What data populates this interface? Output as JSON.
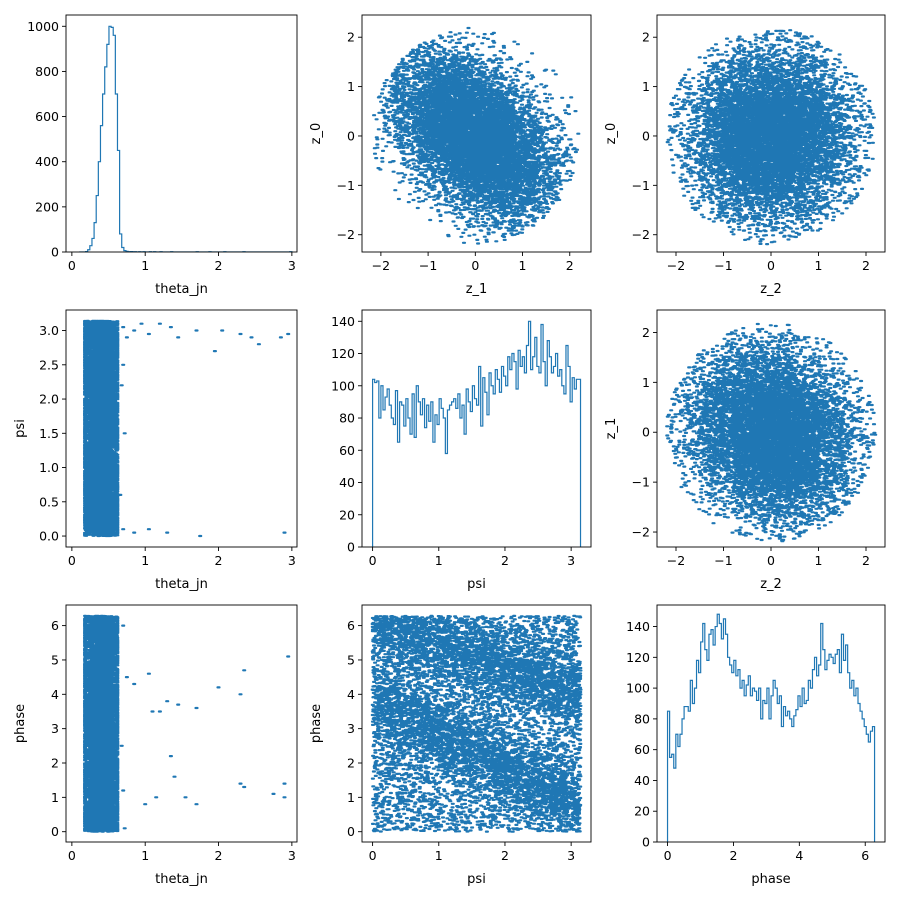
{
  "chart_data": [
    {
      "type": "histogram",
      "panel": "row1-col1",
      "xlabel": "theta_jn",
      "ylabel": "",
      "xlim": [
        -0.08,
        3.07
      ],
      "ylim": [
        0,
        1050
      ],
      "xticks": [
        0,
        1,
        2,
        3
      ],
      "yticks": [
        0,
        200,
        400,
        600,
        800,
        1000
      ],
      "bins": {
        "start": 0.1,
        "end": 3.0,
        "n": 100
      },
      "counts": [
        0,
        0,
        0,
        2,
        10,
        28,
        60,
        130,
        250,
        400,
        560,
        700,
        820,
        920,
        1000,
        995,
        960,
        700,
        450,
        80,
        20,
        6,
        3,
        1,
        2,
        1,
        1,
        0,
        1,
        0,
        1,
        0,
        0,
        1,
        0,
        1,
        0,
        0,
        1,
        0,
        0,
        0,
        0,
        1,
        0,
        0,
        0,
        0,
        0,
        0,
        0,
        0,
        0,
        0,
        0,
        1,
        0,
        0,
        0,
        0,
        0,
        1,
        0,
        0,
        0,
        0,
        0,
        0,
        1,
        0,
        0,
        0,
        0,
        0,
        0,
        0,
        0,
        1,
        0,
        0,
        0,
        0,
        0,
        0,
        0,
        0,
        0,
        0,
        0,
        0,
        0,
        0,
        0,
        0,
        0,
        0,
        0,
        0,
        0,
        1
      ],
      "color": "#1f77b4"
    },
    {
      "type": "scatter",
      "panel": "row1-col2",
      "xlabel": "z_1",
      "ylabel": "z_0",
      "xlim": [
        -2.4,
        2.45
      ],
      "ylim": [
        -2.35,
        2.45
      ],
      "xticks": [
        -2,
        -1,
        0,
        1,
        2
      ],
      "yticks": [
        -2,
        -1,
        0,
        1,
        2
      ],
      "distribution": {
        "kind": "disk",
        "radius": 2.2,
        "n_points": 9000,
        "correlation": -0.45,
        "seed": 11
      },
      "color": "#1f77b4"
    },
    {
      "type": "scatter",
      "panel": "row1-col3",
      "xlabel": "z_2",
      "ylabel": "z_0",
      "xlim": [
        -2.4,
        2.4
      ],
      "ylim": [
        -2.35,
        2.45
      ],
      "xticks": [
        -2,
        -1,
        0,
        1,
        2
      ],
      "yticks": [
        -2,
        -1,
        0,
        1,
        2
      ],
      "distribution": {
        "kind": "disk",
        "radius": 2.2,
        "n_points": 9000,
        "correlation": 0.0,
        "seed": 23
      },
      "color": "#1f77b4"
    },
    {
      "type": "scatter",
      "panel": "row2-col1",
      "xlabel": "theta_jn",
      "ylabel": "psi",
      "xlim": [
        -0.08,
        3.07
      ],
      "ylim": [
        -0.16,
        3.3
      ],
      "xticks": [
        0,
        1,
        2,
        3
      ],
      "yticks": [
        0.0,
        0.5,
        1.0,
        1.5,
        2.0,
        2.5,
        3.0
      ],
      "tick_decimals_y": 1,
      "distribution": {
        "kind": "band",
        "x_range": [
          0.18,
          0.62
        ],
        "y_range": [
          0,
          3.14159
        ],
        "n_points": 9000,
        "seed": 5
      },
      "outliers": [
        [
          0.7,
          3.05
        ],
        [
          0.75,
          2.9
        ],
        [
          0.85,
          3.0
        ],
        [
          0.95,
          3.1
        ],
        [
          1.05,
          2.95
        ],
        [
          1.2,
          3.1
        ],
        [
          1.35,
          3.05
        ],
        [
          1.45,
          2.9
        ],
        [
          1.7,
          3.0
        ],
        [
          1.95,
          2.7
        ],
        [
          2.05,
          3.0
        ],
        [
          2.3,
          2.95
        ],
        [
          2.45,
          2.9
        ],
        [
          2.55,
          2.8
        ],
        [
          2.85,
          2.9
        ],
        [
          2.95,
          2.95
        ],
        [
          0.7,
          2.5
        ],
        [
          0.72,
          1.5
        ],
        [
          0.7,
          0.1
        ],
        [
          0.85,
          0.05
        ],
        [
          1.05,
          0.1
        ],
        [
          1.3,
          0.05
        ],
        [
          1.75,
          0.0
        ],
        [
          2.9,
          0.05
        ],
        [
          0.68,
          2.2
        ],
        [
          0.66,
          0.6
        ]
      ],
      "color": "#1f77b4"
    },
    {
      "type": "histogram",
      "panel": "row2-col2",
      "xlabel": "psi",
      "ylabel": "",
      "xlim": [
        -0.16,
        3.3
      ],
      "ylim": [
        0,
        147
      ],
      "xticks": [
        0,
        1,
        2,
        3
      ],
      "yticks": [
        0,
        20,
        40,
        60,
        80,
        100,
        120,
        140
      ],
      "bins": {
        "start": 0,
        "end": 3.14159,
        "n": 100
      },
      "counts": [
        104,
        102,
        103,
        80,
        100,
        85,
        93,
        98,
        88,
        80,
        76,
        97,
        65,
        90,
        88,
        75,
        92,
        80,
        70,
        95,
        68,
        100,
        90,
        82,
        92,
        74,
        88,
        78,
        90,
        65,
        82,
        76,
        92,
        86,
        80,
        58,
        85,
        88,
        90,
        92,
        86,
        95,
        80,
        88,
        70,
        98,
        90,
        84,
        100,
        92,
        88,
        112,
        75,
        105,
        96,
        82,
        108,
        100,
        95,
        110,
        104,
        96,
        112,
        106,
        100,
        118,
        110,
        120,
        115,
        98,
        122,
        112,
        118,
        108,
        125,
        140,
        110,
        118,
        130,
        112,
        108,
        138,
        115,
        100,
        128,
        118,
        108,
        112,
        120,
        106,
        110,
        100,
        95,
        125,
        112,
        90,
        105,
        98,
        104,
        104
      ],
      "color": "#1f77b4"
    },
    {
      "type": "scatter",
      "panel": "row2-col3",
      "xlabel": "z_2",
      "ylabel": "z_1",
      "xlim": [
        -2.4,
        2.4
      ],
      "ylim": [
        -2.3,
        2.45
      ],
      "xticks": [
        -2,
        -1,
        0,
        1,
        2
      ],
      "yticks": [
        -2,
        -1,
        0,
        1,
        2
      ],
      "distribution": {
        "kind": "disk",
        "radius": 2.2,
        "n_points": 9000,
        "correlation": -0.15,
        "seed": 37
      },
      "color": "#1f77b4"
    },
    {
      "type": "scatter",
      "panel": "row3-col1",
      "xlabel": "theta_jn",
      "ylabel": "phase",
      "xlim": [
        -0.08,
        3.07
      ],
      "ylim": [
        -0.3,
        6.6
      ],
      "xticks": [
        0,
        1,
        2,
        3
      ],
      "yticks": [
        0,
        1,
        2,
        3,
        4,
        5,
        6
      ],
      "distribution": {
        "kind": "band",
        "x_range": [
          0.18,
          0.62
        ],
        "y_range": [
          0,
          6.2832
        ],
        "n_points": 9000,
        "seed": 9
      },
      "outliers": [
        [
          0.7,
          6.0
        ],
        [
          0.75,
          4.5
        ],
        [
          0.85,
          4.3
        ],
        [
          1.05,
          4.6
        ],
        [
          1.1,
          3.5
        ],
        [
          1.2,
          3.5
        ],
        [
          1.3,
          3.8
        ],
        [
          1.45,
          3.7
        ],
        [
          1.7,
          3.6
        ],
        [
          2.0,
          4.2
        ],
        [
          2.3,
          4.0
        ],
        [
          2.35,
          4.7
        ],
        [
          2.95,
          5.1
        ],
        [
          1.0,
          0.8
        ],
        [
          1.15,
          1.0
        ],
        [
          1.35,
          2.2
        ],
        [
          1.4,
          1.6
        ],
        [
          1.55,
          1.0
        ],
        [
          1.7,
          0.8
        ],
        [
          2.3,
          1.4
        ],
        [
          2.35,
          1.3
        ],
        [
          2.75,
          1.1
        ],
        [
          2.9,
          1.0
        ],
        [
          2.9,
          1.4
        ],
        [
          0.7,
          1.2
        ],
        [
          0.68,
          2.5
        ],
        [
          0.72,
          0.1
        ]
      ],
      "color": "#1f77b4"
    },
    {
      "type": "scatter",
      "panel": "row3-col2",
      "xlabel": "psi",
      "ylabel": "phase",
      "xlim": [
        -0.16,
        3.3
      ],
      "ylim": [
        -0.3,
        6.6
      ],
      "xticks": [
        0,
        1,
        2,
        3
      ],
      "yticks": [
        0,
        1,
        2,
        3,
        4,
        5,
        6
      ],
      "distribution": {
        "kind": "diagonal-bands",
        "x_range": [
          0,
          3.14159
        ],
        "y_range": [
          0,
          6.2832
        ],
        "bands": [
          {
            "intercept": 6.2,
            "slope": -0.7
          },
          {
            "intercept": 3.9,
            "slope": -1.0
          }
        ],
        "n_points": 9000,
        "band_fraction": 0.55,
        "seed": 17
      },
      "color": "#1f77b4"
    },
    {
      "type": "histogram",
      "panel": "row3-col3",
      "xlabel": "phase",
      "ylabel": "",
      "xlim": [
        -0.32,
        6.6
      ],
      "ylim": [
        0,
        154
      ],
      "xticks": [
        0,
        2,
        4,
        6
      ],
      "yticks": [
        0,
        20,
        40,
        60,
        80,
        100,
        120,
        140
      ],
      "bins": {
        "start": 0,
        "end": 6.2832,
        "n": 100
      },
      "counts": [
        85,
        55,
        57,
        48,
        70,
        62,
        70,
        80,
        88,
        88,
        85,
        105,
        90,
        100,
        118,
        110,
        130,
        142,
        125,
        118,
        135,
        138,
        128,
        140,
        148,
        142,
        132,
        145,
        135,
        120,
        115,
        110,
        118,
        108,
        112,
        100,
        105,
        95,
        102,
        108,
        95,
        100,
        98,
        92,
        100,
        80,
        92,
        90,
        100,
        80,
        95,
        105,
        100,
        90,
        95,
        75,
        88,
        82,
        85,
        80,
        75,
        82,
        86,
        95,
        88,
        100,
        90,
        92,
        105,
        100,
        112,
        120,
        108,
        115,
        142,
        125,
        112,
        118,
        122,
        120,
        116,
        122,
        125,
        110,
        135,
        118,
        128,
        110,
        100,
        105,
        95,
        100,
        90,
        85,
        80,
        75,
        70,
        65,
        72,
        75
      ],
      "color": "#1f77b4"
    }
  ]
}
